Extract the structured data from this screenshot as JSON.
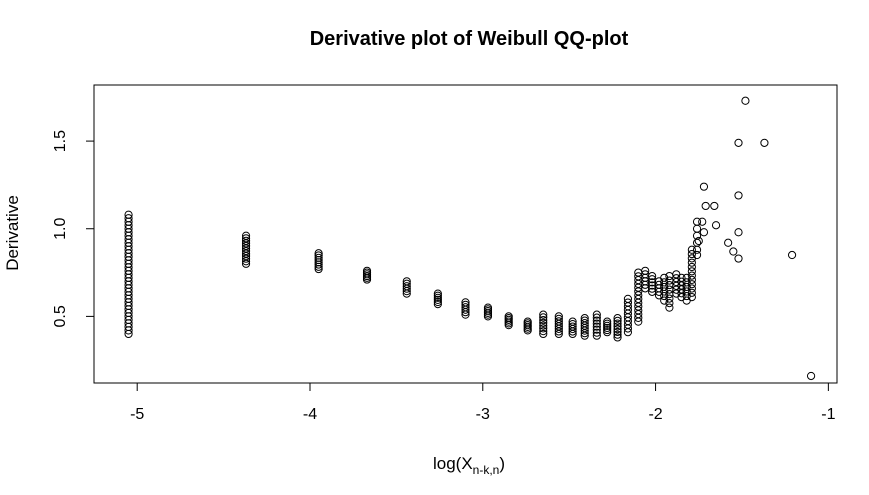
{
  "chart_data": {
    "type": "scatter",
    "title": "Derivative plot of Weibull QQ-plot",
    "xlabel_main": "log(X",
    "xlabel_sub": "n-k,n",
    "xlabel_close": ")",
    "ylabel": "Derivative",
    "xlim": [
      -5.25,
      -0.95
    ],
    "ylim": [
      0.12,
      1.82
    ],
    "xticks": [
      -5,
      -4,
      -3,
      -2,
      -1
    ],
    "xtick_labels": [
      "-5",
      "-4",
      "-3",
      "-2",
      "-1"
    ],
    "yticks": [
      0.5,
      1.0,
      1.5
    ],
    "ytick_labels": [
      "0.5",
      "1.0",
      "1.5"
    ],
    "marker": "open-circle",
    "marker_color": "#000000",
    "clusters": [
      {
        "x": -5.05,
        "y_from": 0.4,
        "y_to": 1.08,
        "n": 35
      },
      {
        "x": -4.37,
        "y_from": 0.8,
        "y_to": 0.96,
        "n": 12
      },
      {
        "x": -3.95,
        "y_from": 0.77,
        "y_to": 0.86,
        "n": 8
      },
      {
        "x": -3.67,
        "y_from": 0.71,
        "y_to": 0.76,
        "n": 6
      },
      {
        "x": -3.44,
        "y_from": 0.63,
        "y_to": 0.7,
        "n": 6
      },
      {
        "x": -3.26,
        "y_from": 0.57,
        "y_to": 0.63,
        "n": 6
      },
      {
        "x": -3.1,
        "y_from": 0.51,
        "y_to": 0.58,
        "n": 6
      },
      {
        "x": -2.97,
        "y_from": 0.5,
        "y_to": 0.55,
        "n": 6
      },
      {
        "x": -2.85,
        "y_from": 0.45,
        "y_to": 0.5,
        "n": 6
      },
      {
        "x": -2.74,
        "y_from": 0.42,
        "y_to": 0.47,
        "n": 6
      },
      {
        "x": -2.65,
        "y_from": 0.4,
        "y_to": 0.51,
        "n": 8
      },
      {
        "x": -2.56,
        "y_from": 0.4,
        "y_to": 0.5,
        "n": 8
      },
      {
        "x": -2.48,
        "y_from": 0.4,
        "y_to": 0.47,
        "n": 6
      },
      {
        "x": -2.41,
        "y_from": 0.39,
        "y_to": 0.49,
        "n": 8
      },
      {
        "x": -2.34,
        "y_from": 0.39,
        "y_to": 0.51,
        "n": 8
      },
      {
        "x": -2.28,
        "y_from": 0.41,
        "y_to": 0.47,
        "n": 6
      },
      {
        "x": -2.22,
        "y_from": 0.38,
        "y_to": 0.49,
        "n": 8
      },
      {
        "x": -2.16,
        "y_from": 0.41,
        "y_to": 0.6,
        "n": 10
      },
      {
        "x": -2.1,
        "y_from": 0.47,
        "y_to": 0.75,
        "n": 14
      },
      {
        "x": -2.06,
        "y_from": 0.66,
        "y_to": 0.76,
        "n": 6
      },
      {
        "x": -2.02,
        "y_from": 0.64,
        "y_to": 0.73,
        "n": 6
      },
      {
        "x": -1.98,
        "y_from": 0.62,
        "y_to": 0.7,
        "n": 5
      },
      {
        "x": -1.95,
        "y_from": 0.59,
        "y_to": 0.72,
        "n": 6
      },
      {
        "x": -1.92,
        "y_from": 0.55,
        "y_to": 0.73,
        "n": 8
      },
      {
        "x": -1.88,
        "y_from": 0.63,
        "y_to": 0.74,
        "n": 6
      },
      {
        "x": -1.85,
        "y_from": 0.61,
        "y_to": 0.72,
        "n": 6
      },
      {
        "x": -1.82,
        "y_from": 0.59,
        "y_to": 0.72,
        "n": 6
      },
      {
        "x": -1.79,
        "y_from": 0.61,
        "y_to": 0.88,
        "n": 12
      },
      {
        "x": -1.76,
        "y_from": 0.88,
        "y_to": 1.04,
        "n": 5
      }
    ],
    "points": [
      {
        "x": -1.76,
        "y": 0.85
      },
      {
        "x": -1.75,
        "y": 0.93
      },
      {
        "x": -1.73,
        "y": 1.04
      },
      {
        "x": -1.72,
        "y": 0.98
      },
      {
        "x": -1.71,
        "y": 1.13
      },
      {
        "x": -1.72,
        "y": 1.24
      },
      {
        "x": -1.66,
        "y": 1.13
      },
      {
        "x": -1.65,
        "y": 1.02
      },
      {
        "x": -1.58,
        "y": 0.92
      },
      {
        "x": -1.55,
        "y": 0.87
      },
      {
        "x": -1.52,
        "y": 0.83
      },
      {
        "x": -1.52,
        "y": 0.98
      },
      {
        "x": -1.52,
        "y": 1.19
      },
      {
        "x": -1.52,
        "y": 1.49
      },
      {
        "x": -1.48,
        "y": 1.73
      },
      {
        "x": -1.37,
        "y": 1.49
      },
      {
        "x": -1.21,
        "y": 0.85
      },
      {
        "x": -1.1,
        "y": 0.16
      }
    ]
  }
}
